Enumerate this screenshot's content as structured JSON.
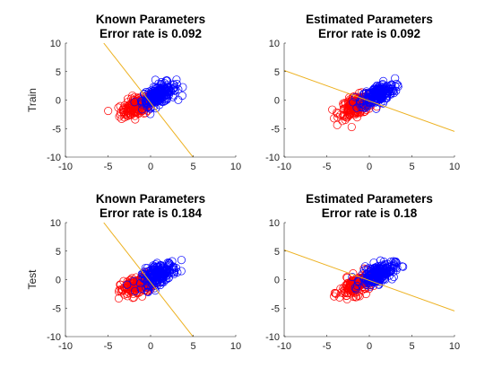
{
  "colors": {
    "class_pos": "#0000FF",
    "class_neg": "#FF0000",
    "boundary": "#EDB120",
    "axis": "#262626"
  },
  "chart_data": [
    {
      "type": "scatter",
      "title_line1": "Known Parameters",
      "title_line2": "Error rate is 0.092",
      "ylabel": "Train",
      "xlim": [
        -10,
        10
      ],
      "ylim": [
        -10,
        10
      ],
      "xticks": [
        -10,
        -5,
        0,
        5,
        10
      ],
      "yticks": [
        -10,
        -5,
        0,
        5,
        10
      ],
      "cluster_centers": [
        [
          1.0,
          1.0
        ],
        [
          -1.5,
          -1.0
        ]
      ],
      "boundary": {
        "x": [
          -5.5,
          5.5
        ],
        "y": [
          10,
          -11
        ]
      }
    },
    {
      "type": "scatter",
      "title_line1": "Estimated Parameters",
      "title_line2": "Error rate is 0.092",
      "ylabel": "",
      "xlim": [
        -10,
        10
      ],
      "ylim": [
        -10,
        10
      ],
      "xticks": [
        -10,
        -5,
        0,
        5,
        10
      ],
      "yticks": [
        -10,
        -5,
        0,
        5,
        10
      ],
      "cluster_centers": [
        [
          1.0,
          1.0
        ],
        [
          -1.5,
          -1.0
        ]
      ],
      "boundary": {
        "x": [
          -10,
          10
        ],
        "y": [
          5.2,
          -5.5
        ]
      }
    },
    {
      "type": "scatter",
      "title_line1": "Known Parameters",
      "title_line2": "Error rate is 0.184",
      "ylabel": "Test",
      "xlim": [
        -10,
        10
      ],
      "ylim": [
        -10,
        10
      ],
      "xticks": [
        -10,
        -5,
        0,
        5,
        10
      ],
      "yticks": [
        -10,
        -5,
        0,
        5,
        10
      ],
      "cluster_centers": [
        [
          1.0,
          1.0
        ],
        [
          -1.5,
          -1.0
        ]
      ],
      "boundary": {
        "x": [
          -5.5,
          5.5
        ],
        "y": [
          10,
          -11
        ]
      }
    },
    {
      "type": "scatter",
      "title_line1": "Estimated Parameters",
      "title_line2": "Error rate is 0.18",
      "ylabel": "",
      "xlim": [
        -10,
        10
      ],
      "ylim": [
        -10,
        10
      ],
      "xticks": [
        -10,
        -5,
        0,
        5,
        10
      ],
      "yticks": [
        -10,
        -5,
        0,
        5,
        10
      ],
      "cluster_centers": [
        [
          1.0,
          1.0
        ],
        [
          -1.5,
          -1.0
        ]
      ],
      "boundary": {
        "x": [
          -10,
          10
        ],
        "y": [
          5.2,
          -5.5
        ]
      }
    }
  ]
}
